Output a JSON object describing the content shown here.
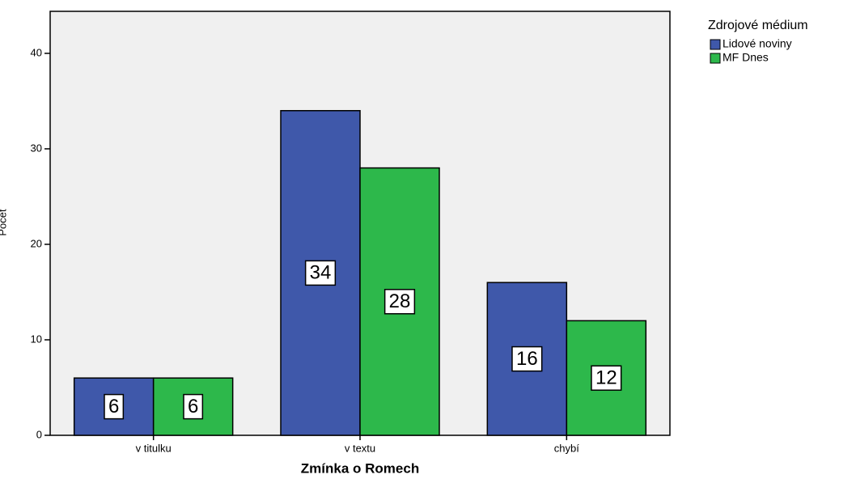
{
  "chart_data": {
    "type": "bar",
    "categories": [
      "v titulku",
      "v textu",
      "chybí"
    ],
    "series": [
      {
        "name": "Lidové noviny",
        "color": "#3f58aa",
        "values": [
          6,
          34,
          16
        ]
      },
      {
        "name": "MF Dnes",
        "color": "#2db84b",
        "values": [
          6,
          28,
          12
        ]
      }
    ],
    "xlabel": "Zmínka o Romech",
    "ylabel": "Počet",
    "legend_title": "Zdrojové médium",
    "legend": "right",
    "ylim": [
      0,
      44.4
    ],
    "yticks": [
      0,
      10,
      20,
      30,
      40
    ]
  }
}
